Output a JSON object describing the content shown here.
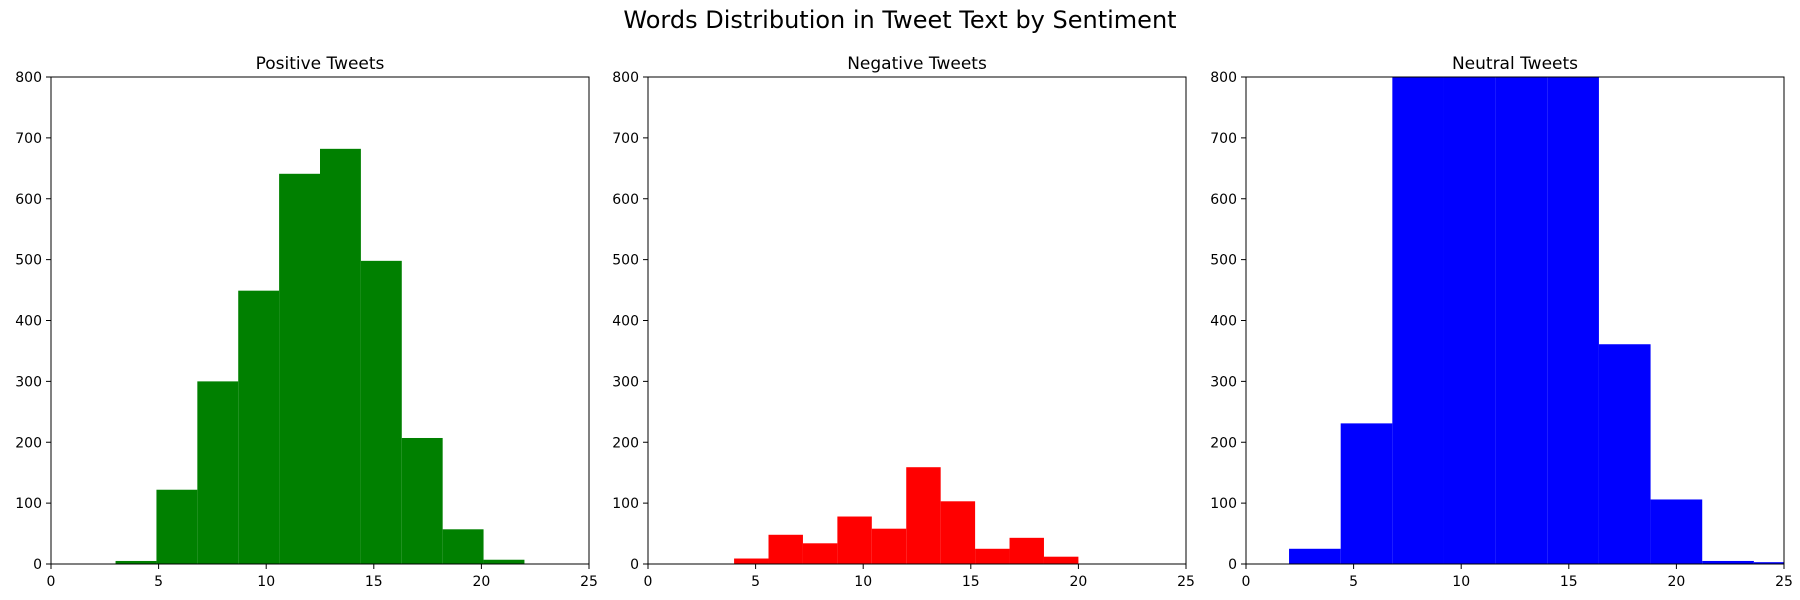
{
  "figure": {
    "title": "Words Distribution in Tweet Text by Sentiment"
  },
  "chart_data": [
    {
      "type": "bar",
      "subtype": "histogram",
      "title": "Positive Tweets",
      "color": "#008000",
      "xlim": [
        0,
        25
      ],
      "ylim": [
        0,
        800
      ],
      "xticks": [
        0,
        5,
        10,
        15,
        20,
        25
      ],
      "yticks": [
        0,
        100,
        200,
        300,
        400,
        500,
        600,
        700,
        800
      ],
      "bins": [
        {
          "x0": 3.0,
          "x1": 4.9,
          "value": 5
        },
        {
          "x0": 4.9,
          "x1": 6.8,
          "value": 122
        },
        {
          "x0": 6.8,
          "x1": 8.7,
          "value": 300
        },
        {
          "x0": 8.7,
          "x1": 10.6,
          "value": 449
        },
        {
          "x0": 10.6,
          "x1": 12.5,
          "value": 641
        },
        {
          "x0": 12.5,
          "x1": 14.4,
          "value": 682
        },
        {
          "x0": 14.4,
          "x1": 16.3,
          "value": 498
        },
        {
          "x0": 16.3,
          "x1": 18.2,
          "value": 207
        },
        {
          "x0": 18.2,
          "x1": 20.1,
          "value": 57
        },
        {
          "x0": 20.1,
          "x1": 22.0,
          "value": 7
        }
      ]
    },
    {
      "type": "bar",
      "subtype": "histogram",
      "title": "Negative Tweets",
      "color": "#ff0000",
      "xlim": [
        0,
        25
      ],
      "ylim": [
        0,
        800
      ],
      "xticks": [
        0,
        5,
        10,
        15,
        20,
        25
      ],
      "yticks": [
        0,
        100,
        200,
        300,
        400,
        500,
        600,
        700,
        800
      ],
      "bins": [
        {
          "x0": 4.0,
          "x1": 5.6,
          "value": 9
        },
        {
          "x0": 5.6,
          "x1": 7.2,
          "value": 48
        },
        {
          "x0": 7.2,
          "x1": 8.8,
          "value": 34
        },
        {
          "x0": 8.8,
          "x1": 10.4,
          "value": 78
        },
        {
          "x0": 10.4,
          "x1": 12.0,
          "value": 58
        },
        {
          "x0": 12.0,
          "x1": 13.6,
          "value": 159
        },
        {
          "x0": 13.6,
          "x1": 15.2,
          "value": 103
        },
        {
          "x0": 15.2,
          "x1": 16.8,
          "value": 25
        },
        {
          "x0": 16.8,
          "x1": 18.4,
          "value": 43
        },
        {
          "x0": 18.4,
          "x1": 20.0,
          "value": 12
        }
      ]
    },
    {
      "type": "bar",
      "subtype": "histogram",
      "title": "Neutral Tweets",
      "color": "#0000ff",
      "xlim": [
        0,
        25
      ],
      "ylim": [
        0,
        800
      ],
      "xticks": [
        0,
        5,
        10,
        15,
        20,
        25
      ],
      "yticks": [
        0,
        100,
        200,
        300,
        400,
        500,
        600,
        700,
        800
      ],
      "bins": [
        {
          "x0": 2.0,
          "x1": 4.4,
          "value": 25
        },
        {
          "x0": 4.4,
          "x1": 6.8,
          "value": 231
        },
        {
          "x0": 6.8,
          "x1": 9.2,
          "value": 800
        },
        {
          "x0": 9.2,
          "x1": 11.6,
          "value": 800
        },
        {
          "x0": 11.6,
          "x1": 14.0,
          "value": 800
        },
        {
          "x0": 14.0,
          "x1": 16.4,
          "value": 800
        },
        {
          "x0": 16.4,
          "x1": 18.8,
          "value": 361
        },
        {
          "x0": 18.8,
          "x1": 21.2,
          "value": 106
        },
        {
          "x0": 21.2,
          "x1": 23.6,
          "value": 5
        },
        {
          "x0": 23.6,
          "x1": 26.0,
          "value": 3
        }
      ]
    }
  ]
}
